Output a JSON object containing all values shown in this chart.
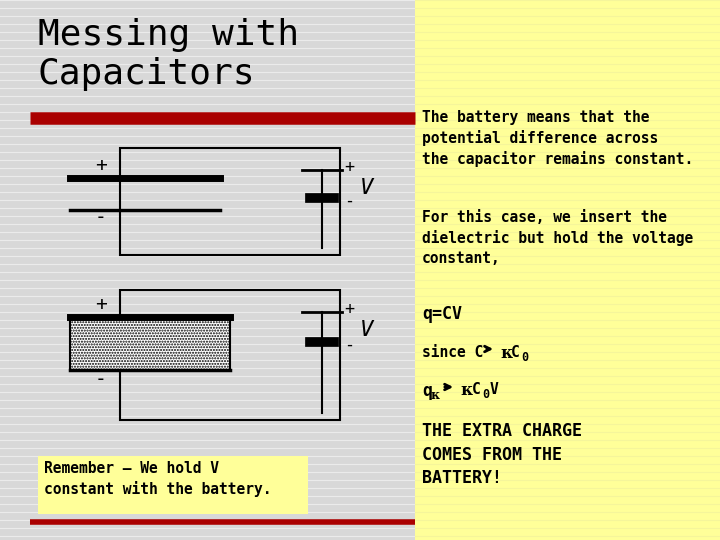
{
  "title": "Messing with\nCapacitors",
  "bg_color": "#d8d8d8",
  "yellow_box_color": "#ffff99",
  "red_line_color": "#aa0000",
  "title_fontsize": 26,
  "right_text_1": "The battery means that the\npotential difference across\nthe capacitor remains constant.",
  "right_text_2": "For this case, we insert the\ndielectric but hold the voltage\nconstant,",
  "right_text_3": "q=CV",
  "bottom_left_text": "Remember – We hold V\nconstant with the battery.",
  "font_family": "monospace"
}
